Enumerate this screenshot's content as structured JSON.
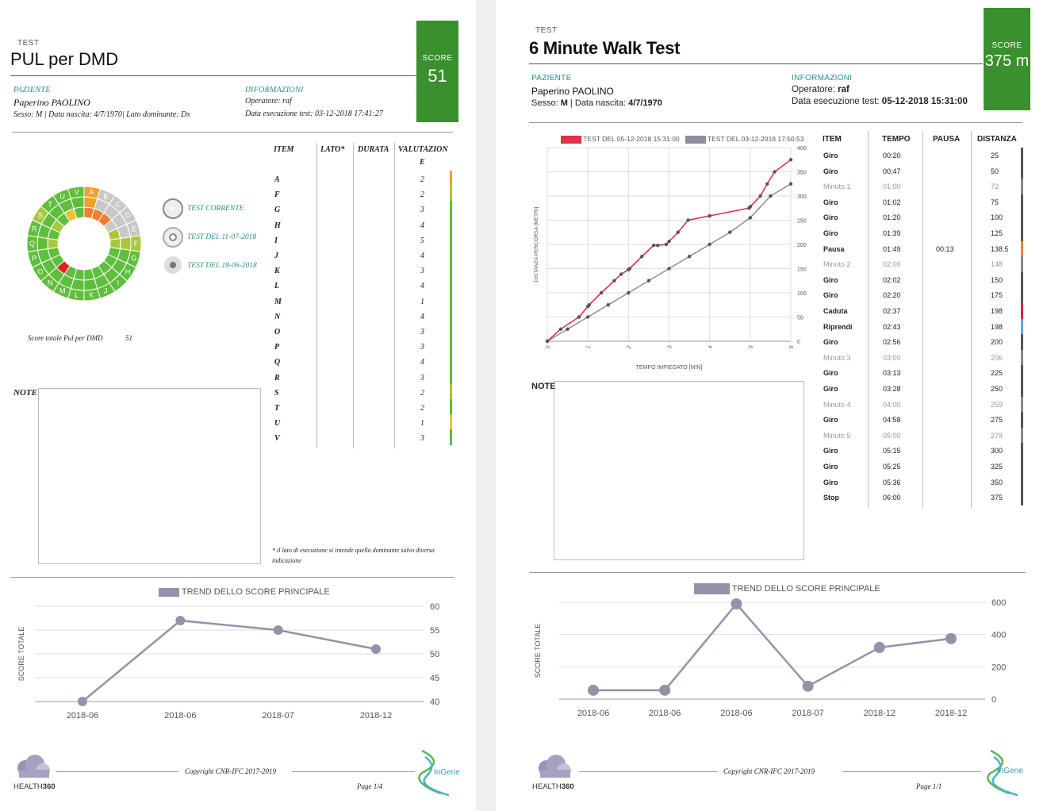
{
  "left": {
    "test_label": "TEST",
    "title": "PUL per DMD",
    "score_label": "SCORE",
    "score_value": "51",
    "patient_label": "PAZIENTE",
    "patient_name": "Paperino PAOLINO",
    "patient_details": "Sesso: M | Data nascita: 4/7/1970| Lato dominante: Dx",
    "info_label": "INFORMAZIONI",
    "operator": "Operatore: raf",
    "exec_date": "Data esecuzione test: 03-12-2018 17:41:27",
    "wheel_sectors": [
      "A",
      "B",
      "C",
      "D",
      "E",
      "F",
      "G",
      "H",
      "I",
      "J",
      "K",
      "L",
      "M",
      "N",
      "O",
      "P",
      "Q",
      "R",
      "S",
      "T",
      "U",
      "V"
    ],
    "legend": [
      {
        "label": "TEST CORRENTE"
      },
      {
        "label": "TEST DEL 11-07-2018"
      },
      {
        "label": "TEST DEL 18-06-2018"
      }
    ],
    "total_label": "Score totale Pul per DMD",
    "total_value": "51",
    "table_headers": {
      "item": "ITEM",
      "lato": "LATO*",
      "durata": "DURATA",
      "valutazione": "VALUTAZION",
      "valutazione_e": "E"
    },
    "items": [
      {
        "item": "A",
        "val": "2",
        "color": "#f0a030"
      },
      {
        "item": "F",
        "val": "2",
        "color": "#a8c83c"
      },
      {
        "item": "G",
        "val": "3",
        "color": "#5fbe3c"
      },
      {
        "item": "H",
        "val": "4",
        "color": "#5fbe3c"
      },
      {
        "item": "I",
        "val": "5",
        "color": "#5fbe3c"
      },
      {
        "item": "J",
        "val": "4",
        "color": "#5fbe3c"
      },
      {
        "item": "K",
        "val": "3",
        "color": "#5fbe3c"
      },
      {
        "item": "L",
        "val": "4",
        "color": "#5fbe3c"
      },
      {
        "item": "M",
        "val": "1",
        "color": "#5fbe3c"
      },
      {
        "item": "N",
        "val": "4",
        "color": "#5fbe3c"
      },
      {
        "item": "O",
        "val": "3",
        "color": "#5fbe3c"
      },
      {
        "item": "P",
        "val": "3",
        "color": "#5fbe3c"
      },
      {
        "item": "Q",
        "val": "4",
        "color": "#5fbe3c"
      },
      {
        "item": "R",
        "val": "3",
        "color": "#5fbe3c"
      },
      {
        "item": "S",
        "val": "2",
        "color": "#a8c83c"
      },
      {
        "item": "T",
        "val": "2",
        "color": "#5fbe3c"
      },
      {
        "item": "U",
        "val": "1",
        "color": "#f0c030"
      },
      {
        "item": "V",
        "val": "3",
        "color": "#5fbe3c"
      }
    ],
    "note_label": "NOTE",
    "footnote": "*  il lato di esecuzione si intende quello dominante salvo diversa indicazione",
    "trend_legend": "TREND DELLO SCORE PRINCIPALE",
    "trend_ylabel": "SCORE TOTALE",
    "copyright": "Copyright CNR-IFC 2017-2019",
    "page": "Page 1/4",
    "logo_left_a": "HEALTH",
    "logo_left_b": "360",
    "logo_right": "InGene"
  },
  "right": {
    "test_label": "TEST",
    "title": "6 Minute Walk Test",
    "score_label": "SCORE",
    "score_value": "375 m",
    "patient_label": "PAZIENTE",
    "patient_name": "Paperino PAOLINO",
    "patient_sex_prefix": "Sesso: ",
    "patient_sex": "M",
    "patient_birth_prefix": " | Data nascita: ",
    "patient_birth": "4/7/1970",
    "info_label": "INFORMAZIONI",
    "operator_prefix": "Operatore: ",
    "operator": "raf",
    "exec_prefix": "Data esecuzione test: ",
    "exec_date": "05-12-2018 15:31:00",
    "walk_legend": [
      "TEST DEL 05-12-2018 15:31:00",
      "TEST DEL 03-12-2018 17:50:53"
    ],
    "walk_ylabel": "DISTANZA PERCORSA [METRI]",
    "walk_xlabel": "TEMPO IMPIEGATO [MIN]",
    "table_headers": {
      "item": "ITEM",
      "tempo": "TEMPO",
      "pausa": "PAUSA",
      "distanza": "DISTANZA"
    },
    "rows": [
      {
        "item": "Giro",
        "tempo": "00:20",
        "pausa": "",
        "dist": "25",
        "light": false,
        "color": "#555"
      },
      {
        "item": "Giro",
        "tempo": "00:47",
        "pausa": "",
        "dist": "50",
        "light": false,
        "color": "#555"
      },
      {
        "item": "Minuto 1",
        "tempo": "01:00",
        "pausa": "",
        "dist": "72",
        "light": true,
        "color": "#888"
      },
      {
        "item": "Giro",
        "tempo": "01:02",
        "pausa": "",
        "dist": "75",
        "light": false,
        "color": "#555"
      },
      {
        "item": "Giro",
        "tempo": "01:20",
        "pausa": "",
        "dist": "100",
        "light": false,
        "color": "#555"
      },
      {
        "item": "Giro",
        "tempo": "01:39",
        "pausa": "",
        "dist": "125",
        "light": false,
        "color": "#555"
      },
      {
        "item": "Pausa",
        "tempo": "01:49",
        "pausa": "00:13",
        "dist": "138.5",
        "light": false,
        "color": "#f08030"
      },
      {
        "item": "Minuto 2",
        "tempo": "02:00",
        "pausa": "",
        "dist": "148",
        "light": true,
        "color": "#888"
      },
      {
        "item": "Giro",
        "tempo": "02:02",
        "pausa": "",
        "dist": "150",
        "light": false,
        "color": "#555"
      },
      {
        "item": "Giro",
        "tempo": "02:20",
        "pausa": "",
        "dist": "175",
        "light": false,
        "color": "#555"
      },
      {
        "item": "Caduta",
        "tempo": "02:37",
        "pausa": "",
        "dist": "198",
        "light": false,
        "color": "#e0204a"
      },
      {
        "item": "Riprendi",
        "tempo": "02:43",
        "pausa": "",
        "dist": "198",
        "light": false,
        "color": "#60a8e0"
      },
      {
        "item": "Giro",
        "tempo": "02:56",
        "pausa": "",
        "dist": "200",
        "light": false,
        "color": "#555"
      },
      {
        "item": "Minuto 3",
        "tempo": "03:00",
        "pausa": "",
        "dist": "206",
        "light": true,
        "color": "#888"
      },
      {
        "item": "Giro",
        "tempo": "03:13",
        "pausa": "",
        "dist": "225",
        "light": false,
        "color": "#555"
      },
      {
        "item": "Giro",
        "tempo": "03:28",
        "pausa": "",
        "dist": "250",
        "light": false,
        "color": "#555"
      },
      {
        "item": "Minuto 4",
        "tempo": "04:00",
        "pausa": "",
        "dist": "259",
        "light": true,
        "color": "#888"
      },
      {
        "item": "Giro",
        "tempo": "04:58",
        "pausa": "",
        "dist": "275",
        "light": false,
        "color": "#555"
      },
      {
        "item": "Minuto 5",
        "tempo": "05:00",
        "pausa": "",
        "dist": "278",
        "light": true,
        "color": "#888"
      },
      {
        "item": "Giro",
        "tempo": "05:15",
        "pausa": "",
        "dist": "300",
        "light": false,
        "color": "#555"
      },
      {
        "item": "Giro",
        "tempo": "05:25",
        "pausa": "",
        "dist": "325",
        "light": false,
        "color": "#555"
      },
      {
        "item": "Giro",
        "tempo": "05:36",
        "pausa": "",
        "dist": "350",
        "light": false,
        "color": "#555"
      },
      {
        "item": "Stop",
        "tempo": "06:00",
        "pausa": "",
        "dist": "375",
        "light": false,
        "color": "#555"
      }
    ],
    "note_label": "NOTE",
    "trend_legend": "TREND DELLO SCORE PRINCIPALE",
    "trend_ylabel": "SCORE TOTALE",
    "copyright": "Copyright CNR-IFC 2017-2019",
    "page": "Page 1/1",
    "logo_left_a": "HEALTH",
    "logo_left_b": "360",
    "logo_right": "InGene"
  },
  "chart_data": [
    {
      "type": "line",
      "name": "pul-trend",
      "categories": [
        "2018-06",
        "2018-06",
        "2018-07",
        "2018-12"
      ],
      "series": [
        {
          "name": "TREND DELLO SCORE PRINCIPALE",
          "values": [
            40,
            57,
            55,
            51
          ],
          "color": "#9890a8"
        }
      ],
      "ylabel": "SCORE TOTALE",
      "ylim": [
        40,
        60
      ],
      "yticks": [
        40,
        45,
        50,
        55,
        60
      ],
      "grid": true,
      "y_axis_side": "right"
    },
    {
      "type": "line",
      "name": "walk-distance",
      "xlabel": "TEMPO IMPIEGATO [MIN]",
      "ylabel": "DISTANZA PERCORSA [METRI]",
      "xlim": [
        0,
        6
      ],
      "ylim": [
        0,
        400
      ],
      "xticks": [
        0,
        1,
        2,
        3,
        4,
        5,
        6
      ],
      "yticks": [
        0,
        50,
        100,
        150,
        200,
        250,
        300,
        350,
        400
      ],
      "grid": true,
      "y_axis_side": "right",
      "series": [
        {
          "name": "TEST DEL 05-12-2018 15:31:00",
          "color": "#e0304a",
          "x": [
            0,
            0.33,
            0.78,
            1,
            1.03,
            1.33,
            1.65,
            1.82,
            2,
            2.03,
            2.33,
            2.62,
            2.72,
            2.93,
            3,
            3.22,
            3.47,
            4,
            4.97,
            5,
            5.25,
            5.42,
            5.6,
            6
          ],
          "y": [
            0,
            25,
            50,
            72,
            75,
            100,
            125,
            138.5,
            148,
            150,
            175,
            198,
            198,
            200,
            206,
            225,
            250,
            259,
            275,
            278,
            300,
            325,
            350,
            375
          ]
        },
        {
          "name": "TEST DEL 03-12-2018 17:50:53",
          "color": "#8e8e9e",
          "x": [
            0,
            0.5,
            1,
            1.5,
            2,
            2.5,
            3,
            3.5,
            4,
            4.5,
            5,
            5.5,
            6
          ],
          "y": [
            0,
            25,
            50,
            75,
            100,
            125,
            150,
            175,
            200,
            225,
            255,
            300,
            325
          ]
        }
      ]
    },
    {
      "type": "line",
      "name": "walk-trend",
      "categories": [
        "2018-06",
        "2018-06",
        "2018-06",
        "2018-07",
        "2018-12",
        "2018-12"
      ],
      "series": [
        {
          "name": "TREND DELLO SCORE PRINCIPALE",
          "values": [
            55,
            55,
            590,
            80,
            320,
            375
          ],
          "color": "#9890a8"
        }
      ],
      "ylabel": "SCORE TOTALE",
      "ylim": [
        0,
        600
      ],
      "yticks": [
        0,
        200,
        400,
        600
      ],
      "grid": true,
      "y_axis_side": "right"
    }
  ]
}
